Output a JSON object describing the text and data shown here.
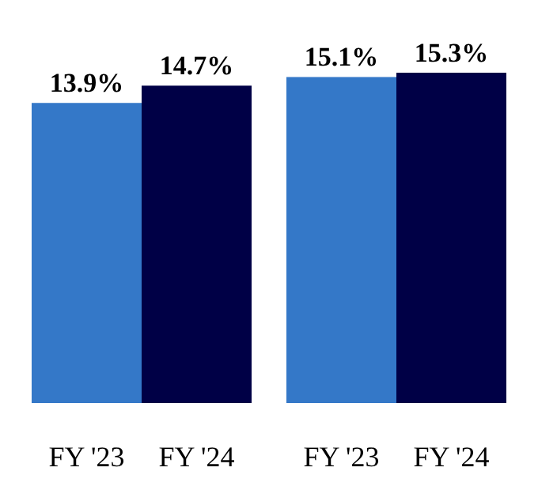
{
  "chart_data": {
    "type": "bar",
    "categories": [
      "FY '23",
      "FY '24",
      "FY '23",
      "FY '24"
    ],
    "values": [
      13.9,
      14.7,
      15.1,
      15.3
    ],
    "colors": [
      "#3478c8",
      "#000046",
      "#3478c8",
      "#000046"
    ],
    "value_labels": [
      "13.9%",
      "14.7%",
      "15.1%",
      "15.3%"
    ],
    "tick_labels": "x"
  }
}
